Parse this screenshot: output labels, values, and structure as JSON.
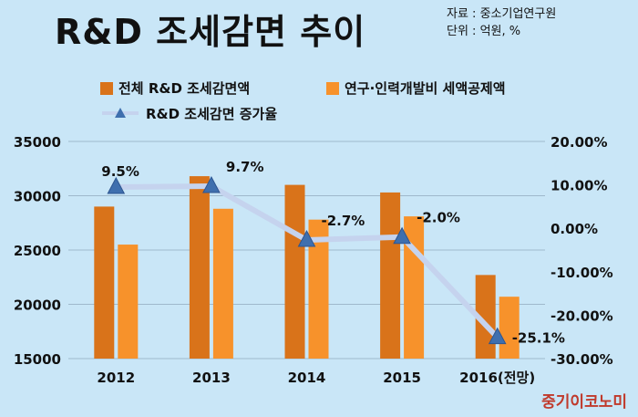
{
  "header": {
    "title": "R&D 조세감면 추이",
    "source_line1": "자료 : 중소기업연구원",
    "source_line2": "단위 : 억원, %"
  },
  "brand": "중기이코노미",
  "colors": {
    "background": "#c9e6f7",
    "bar_total": "#d9731a",
    "bar_rnd": "#f7922b",
    "line": "#c5d3ee",
    "marker": "#3f6fae"
  },
  "chart_data": {
    "type": "bar",
    "title": "R&D 조세감면 추이",
    "categories": [
      "2012",
      "2013",
      "2014",
      "2015",
      "2016(전망)"
    ],
    "series": [
      {
        "name": "전체 R&D 조세감면액",
        "type": "bar",
        "axis": "left",
        "values": [
          29000,
          31800,
          31000,
          30300,
          22700
        ]
      },
      {
        "name": "연구·인력개발비 세액공제액",
        "type": "bar",
        "axis": "left",
        "values": [
          25500,
          28800,
          27800,
          28100,
          20700
        ]
      },
      {
        "name": "R&D 조세감면 증가율",
        "type": "line",
        "axis": "right",
        "values": [
          9.5,
          9.7,
          -2.7,
          -2.0,
          -25.1
        ]
      }
    ],
    "data_labels": [
      "9.5%",
      "9.7%",
      "-2.7%",
      "-2.0%",
      "-25.1%"
    ],
    "y_left": {
      "min": 15000,
      "max": 35000,
      "ticks": [
        "15000",
        "20000",
        "25000",
        "30000",
        "35000"
      ]
    },
    "y_right": {
      "min": -30,
      "max": 20,
      "ticks": [
        "-30.00%",
        "-20.00%",
        "-10.00%",
        "0.00%",
        "10.00%",
        "20.00%"
      ]
    },
    "grid": true,
    "legend_position": "top"
  }
}
